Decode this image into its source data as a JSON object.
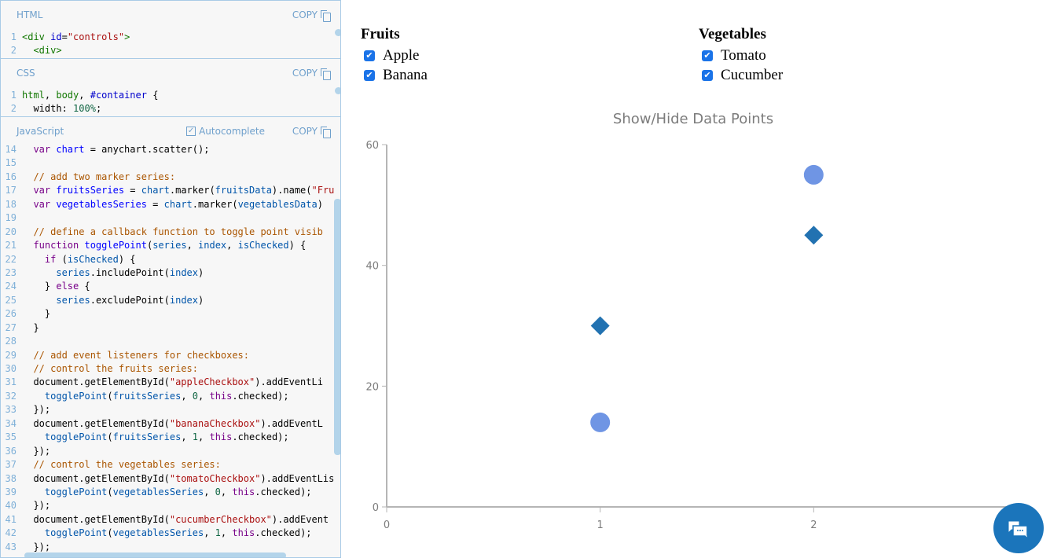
{
  "editor": {
    "html": {
      "title": "HTML",
      "copy": "COPY",
      "lines": [
        {
          "n": "1",
          "seg": [
            [
              "tag",
              "<div "
            ],
            [
              "attr",
              "id"
            ],
            [
              "pl",
              "="
            ],
            [
              "str",
              "\"controls\""
            ],
            [
              "tag",
              ">"
            ]
          ]
        },
        {
          "n": "2",
          "seg": [
            [
              "tag",
              "  <div>"
            ]
          ]
        }
      ]
    },
    "css": {
      "title": "CSS",
      "copy": "COPY",
      "lines": [
        {
          "n": "1",
          "seg": [
            [
              "tag",
              "html"
            ],
            [
              "pl",
              ", "
            ],
            [
              "tag",
              "body"
            ],
            [
              "pl",
              ", "
            ],
            [
              "attr",
              "#container"
            ],
            [
              "pl",
              " {"
            ]
          ]
        },
        {
          "n": "2",
          "seg": [
            [
              "pl",
              "  width: "
            ],
            [
              "num",
              "100%"
            ],
            [
              "pl",
              ";"
            ]
          ]
        }
      ]
    },
    "js": {
      "title": "JavaScript",
      "autocomplete": "Autocomplete",
      "copy": "COPY",
      "lines": [
        {
          "n": "14",
          "seg": [
            [
              "pl",
              "  "
            ],
            [
              "kw",
              "var "
            ],
            [
              "var",
              "chart"
            ],
            [
              "pl",
              " = anychart.scatter();"
            ]
          ]
        },
        {
          "n": "15",
          "seg": []
        },
        {
          "n": "16",
          "seg": [
            [
              "pl",
              "  "
            ],
            [
              "com",
              "// add two marker series:"
            ]
          ]
        },
        {
          "n": "17",
          "seg": [
            [
              "pl",
              "  "
            ],
            [
              "kw",
              "var "
            ],
            [
              "var",
              "fruitsSeries"
            ],
            [
              "pl",
              " = "
            ],
            [
              "def",
              "chart"
            ],
            [
              "pl",
              ".marker("
            ],
            [
              "def",
              "fruitsData"
            ],
            [
              "pl",
              ").name("
            ],
            [
              "str",
              "\"Fru"
            ]
          ]
        },
        {
          "n": "18",
          "seg": [
            [
              "pl",
              "  "
            ],
            [
              "kw",
              "var "
            ],
            [
              "var",
              "vegetablesSeries"
            ],
            [
              "pl",
              " = "
            ],
            [
              "def",
              "chart"
            ],
            [
              "pl",
              ".marker("
            ],
            [
              "def",
              "vegetablesData"
            ],
            [
              "pl",
              ")"
            ]
          ]
        },
        {
          "n": "19",
          "seg": []
        },
        {
          "n": "20",
          "seg": [
            [
              "pl",
              "  "
            ],
            [
              "com",
              "// define a callback function to toggle point visib"
            ]
          ]
        },
        {
          "n": "21",
          "seg": [
            [
              "pl",
              "  "
            ],
            [
              "kw",
              "function "
            ],
            [
              "var",
              "togglePoint"
            ],
            [
              "pl",
              "("
            ],
            [
              "def",
              "series"
            ],
            [
              "pl",
              ", "
            ],
            [
              "def",
              "index"
            ],
            [
              "pl",
              ", "
            ],
            [
              "def",
              "isChecked"
            ],
            [
              "pl",
              ") {"
            ]
          ]
        },
        {
          "n": "22",
          "seg": [
            [
              "pl",
              "    "
            ],
            [
              "kw",
              "if "
            ],
            [
              "pl",
              "("
            ],
            [
              "def",
              "isChecked"
            ],
            [
              "pl",
              ") {"
            ]
          ]
        },
        {
          "n": "23",
          "seg": [
            [
              "pl",
              "      "
            ],
            [
              "def",
              "series"
            ],
            [
              "pl",
              ".includePoint("
            ],
            [
              "def",
              "index"
            ],
            [
              "pl",
              ")"
            ]
          ]
        },
        {
          "n": "24",
          "seg": [
            [
              "pl",
              "    } "
            ],
            [
              "kw",
              "else"
            ],
            [
              "pl",
              " {"
            ]
          ]
        },
        {
          "n": "25",
          "seg": [
            [
              "pl",
              "      "
            ],
            [
              "def",
              "series"
            ],
            [
              "pl",
              ".excludePoint("
            ],
            [
              "def",
              "index"
            ],
            [
              "pl",
              ")"
            ]
          ]
        },
        {
          "n": "26",
          "seg": [
            [
              "pl",
              "    }"
            ]
          ]
        },
        {
          "n": "27",
          "seg": [
            [
              "pl",
              "  }"
            ]
          ]
        },
        {
          "n": "28",
          "seg": []
        },
        {
          "n": "29",
          "seg": [
            [
              "pl",
              "  "
            ],
            [
              "com",
              "// add event listeners for checkboxes:"
            ]
          ]
        },
        {
          "n": "30",
          "seg": [
            [
              "pl",
              "  "
            ],
            [
              "com",
              "// control the fruits series:"
            ]
          ]
        },
        {
          "n": "31",
          "seg": [
            [
              "pl",
              "  document.getElementById("
            ],
            [
              "str",
              "\"appleCheckbox\""
            ],
            [
              "pl",
              ").addEventLi"
            ]
          ]
        },
        {
          "n": "32",
          "seg": [
            [
              "pl",
              "    "
            ],
            [
              "def",
              "togglePoint"
            ],
            [
              "pl",
              "("
            ],
            [
              "def",
              "fruitsSeries"
            ],
            [
              "pl",
              ", "
            ],
            [
              "num",
              "0"
            ],
            [
              "pl",
              ", "
            ],
            [
              "kw",
              "this"
            ],
            [
              "pl",
              ".checked);"
            ]
          ]
        },
        {
          "n": "33",
          "seg": [
            [
              "pl",
              "  });"
            ]
          ]
        },
        {
          "n": "34",
          "seg": [
            [
              "pl",
              "  document.getElementById("
            ],
            [
              "str",
              "\"bananaCheckbox\""
            ],
            [
              "pl",
              ").addEventL"
            ]
          ]
        },
        {
          "n": "35",
          "seg": [
            [
              "pl",
              "    "
            ],
            [
              "def",
              "togglePoint"
            ],
            [
              "pl",
              "("
            ],
            [
              "def",
              "fruitsSeries"
            ],
            [
              "pl",
              ", "
            ],
            [
              "num",
              "1"
            ],
            [
              "pl",
              ", "
            ],
            [
              "kw",
              "this"
            ],
            [
              "pl",
              ".checked);"
            ]
          ]
        },
        {
          "n": "36",
          "seg": [
            [
              "pl",
              "  });"
            ]
          ]
        },
        {
          "n": "37",
          "seg": [
            [
              "pl",
              "  "
            ],
            [
              "com",
              "// control the vegetables series:"
            ]
          ]
        },
        {
          "n": "38",
          "seg": [
            [
              "pl",
              "  document.getElementById("
            ],
            [
              "str",
              "\"tomatoCheckbox\""
            ],
            [
              "pl",
              ").addEventLis"
            ]
          ]
        },
        {
          "n": "39",
          "seg": [
            [
              "pl",
              "    "
            ],
            [
              "def",
              "togglePoint"
            ],
            [
              "pl",
              "("
            ],
            [
              "def",
              "vegetablesSeries"
            ],
            [
              "pl",
              ", "
            ],
            [
              "num",
              "0"
            ],
            [
              "pl",
              ", "
            ],
            [
              "kw",
              "this"
            ],
            [
              "pl",
              ".checked);"
            ]
          ]
        },
        {
          "n": "40",
          "seg": [
            [
              "pl",
              "  });"
            ]
          ]
        },
        {
          "n": "41",
          "seg": [
            [
              "pl",
              "  document.getElementById("
            ],
            [
              "str",
              "\"cucumberCheckbox\""
            ],
            [
              "pl",
              ").addEvent"
            ]
          ]
        },
        {
          "n": "42",
          "seg": [
            [
              "pl",
              "    "
            ],
            [
              "def",
              "togglePoint"
            ],
            [
              "pl",
              "("
            ],
            [
              "def",
              "vegetablesSeries"
            ],
            [
              "pl",
              ", "
            ],
            [
              "num",
              "1"
            ],
            [
              "pl",
              ", "
            ],
            [
              "kw",
              "this"
            ],
            [
              "pl",
              ".checked);"
            ]
          ]
        },
        {
          "n": "43",
          "seg": [
            [
              "pl",
              "  });"
            ]
          ]
        }
      ]
    }
  },
  "controls": {
    "fruits": {
      "title": "Fruits",
      "items": [
        {
          "label": "Apple",
          "checked": true
        },
        {
          "label": "Banana",
          "checked": true
        }
      ]
    },
    "vegetables": {
      "title": "Vegetables",
      "items": [
        {
          "label": "Tomato",
          "checked": true
        },
        {
          "label": "Cucumber",
          "checked": true
        }
      ]
    }
  },
  "chart_data": {
    "type": "scatter",
    "title": "Show/Hide Data Points",
    "xlim": [
      0,
      3
    ],
    "ylim": [
      0,
      60
    ],
    "x_ticks": [
      0,
      1,
      2
    ],
    "y_ticks": [
      0,
      20,
      40,
      60
    ],
    "grid": false,
    "series": [
      {
        "marker": "circle",
        "color": "#6f95e4",
        "points": [
          [
            1,
            14
          ],
          [
            2,
            55
          ]
        ]
      },
      {
        "marker": "diamond",
        "color": "#2272b1",
        "points": [
          [
            1,
            30
          ],
          [
            2,
            45
          ]
        ]
      }
    ]
  },
  "chat_button": {
    "icon": "chat-bubbles-icon",
    "color": "#1b75bb"
  }
}
